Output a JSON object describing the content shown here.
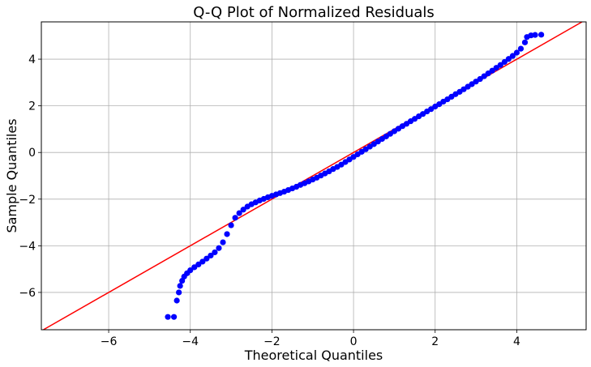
{
  "chart_data": {
    "type": "scatter",
    "title": "Q-Q Plot of Normalized Residuals",
    "xlabel": "Theoretical Quantiles",
    "ylabel": "Sample Quantiles",
    "xlim": [
      -7.65,
      5.7
    ],
    "ylim": [
      -7.6,
      5.6
    ],
    "x_ticks": [
      -6,
      -4,
      -2,
      0,
      2,
      4
    ],
    "y_ticks": [
      -6,
      -4,
      -2,
      0,
      2,
      4
    ],
    "x_tick_labels": [
      "−6",
      "−4",
      "−2",
      "0",
      "2",
      "4"
    ],
    "y_tick_labels": [
      "−6",
      "−4",
      "−2",
      "0",
      "2",
      "4"
    ],
    "grid": true,
    "colors": {
      "points": "#0000ff",
      "reference_line": "#ff0000",
      "grid": "#b0b0b0"
    },
    "reference_line": {
      "slope": 1,
      "intercept": 0
    },
    "series": [
      {
        "marker": "circle",
        "points": [
          [
            -4.55,
            -7.05
          ],
          [
            -4.4,
            -7.05
          ],
          [
            -4.33,
            -6.35
          ],
          [
            -4.28,
            -6.0
          ],
          [
            -4.25,
            -5.72
          ],
          [
            -4.2,
            -5.5
          ],
          [
            -4.15,
            -5.32
          ],
          [
            -4.08,
            -5.18
          ],
          [
            -4.0,
            -5.05
          ],
          [
            -3.9,
            -4.92
          ],
          [
            -3.8,
            -4.8
          ],
          [
            -3.7,
            -4.68
          ],
          [
            -3.6,
            -4.55
          ],
          [
            -3.5,
            -4.42
          ],
          [
            -3.4,
            -4.28
          ],
          [
            -3.3,
            -4.1
          ],
          [
            -3.2,
            -3.85
          ],
          [
            -3.1,
            -3.5
          ],
          [
            -3.0,
            -3.12
          ],
          [
            -2.9,
            -2.8
          ],
          [
            -2.8,
            -2.6
          ],
          [
            -2.7,
            -2.45
          ],
          [
            -2.6,
            -2.32
          ],
          [
            -2.5,
            -2.22
          ],
          [
            -2.4,
            -2.14
          ],
          [
            -2.3,
            -2.06
          ],
          [
            -2.2,
            -1.99
          ],
          [
            -2.1,
            -1.92
          ],
          [
            -2.0,
            -1.86
          ],
          [
            -1.9,
            -1.8
          ],
          [
            -1.8,
            -1.74
          ],
          [
            -1.7,
            -1.68
          ],
          [
            -1.6,
            -1.61
          ],
          [
            -1.5,
            -1.54
          ],
          [
            -1.4,
            -1.47
          ],
          [
            -1.3,
            -1.39
          ],
          [
            -1.2,
            -1.32
          ],
          [
            -1.1,
            -1.24
          ],
          [
            -1.0,
            -1.16
          ],
          [
            -0.9,
            -1.08
          ],
          [
            -0.8,
            -0.99
          ],
          [
            -0.7,
            -0.9
          ],
          [
            -0.6,
            -0.81
          ],
          [
            -0.5,
            -0.71
          ],
          [
            -0.4,
            -0.62
          ],
          [
            -0.3,
            -0.52
          ],
          [
            -0.2,
            -0.41
          ],
          [
            -0.1,
            -0.3
          ],
          [
            0.0,
            -0.19
          ],
          [
            0.1,
            -0.08
          ],
          [
            0.2,
            0.03
          ],
          [
            0.3,
            0.14
          ],
          [
            0.4,
            0.25
          ],
          [
            0.5,
            0.36
          ],
          [
            0.6,
            0.47
          ],
          [
            0.7,
            0.58
          ],
          [
            0.8,
            0.69
          ],
          [
            0.9,
            0.8
          ],
          [
            1.0,
            0.91
          ],
          [
            1.1,
            1.02
          ],
          [
            1.2,
            1.13
          ],
          [
            1.3,
            1.23
          ],
          [
            1.4,
            1.34
          ],
          [
            1.5,
            1.44
          ],
          [
            1.6,
            1.55
          ],
          [
            1.7,
            1.65
          ],
          [
            1.8,
            1.76
          ],
          [
            1.9,
            1.86
          ],
          [
            2.0,
            1.97
          ],
          [
            2.1,
            2.07
          ],
          [
            2.2,
            2.18
          ],
          [
            2.3,
            2.28
          ],
          [
            2.4,
            2.39
          ],
          [
            2.5,
            2.5
          ],
          [
            2.6,
            2.6
          ],
          [
            2.7,
            2.71
          ],
          [
            2.8,
            2.82
          ],
          [
            2.9,
            2.93
          ],
          [
            3.0,
            3.04
          ],
          [
            3.1,
            3.15
          ],
          [
            3.2,
            3.27
          ],
          [
            3.3,
            3.39
          ],
          [
            3.4,
            3.51
          ],
          [
            3.5,
            3.63
          ],
          [
            3.6,
            3.75
          ],
          [
            3.7,
            3.88
          ],
          [
            3.8,
            4.01
          ],
          [
            3.9,
            4.14
          ],
          [
            4.0,
            4.28
          ],
          [
            4.1,
            4.45
          ],
          [
            4.2,
            4.72
          ],
          [
            4.25,
            4.95
          ],
          [
            4.35,
            5.02
          ],
          [
            4.45,
            5.04
          ],
          [
            4.6,
            5.05
          ]
        ]
      }
    ]
  }
}
